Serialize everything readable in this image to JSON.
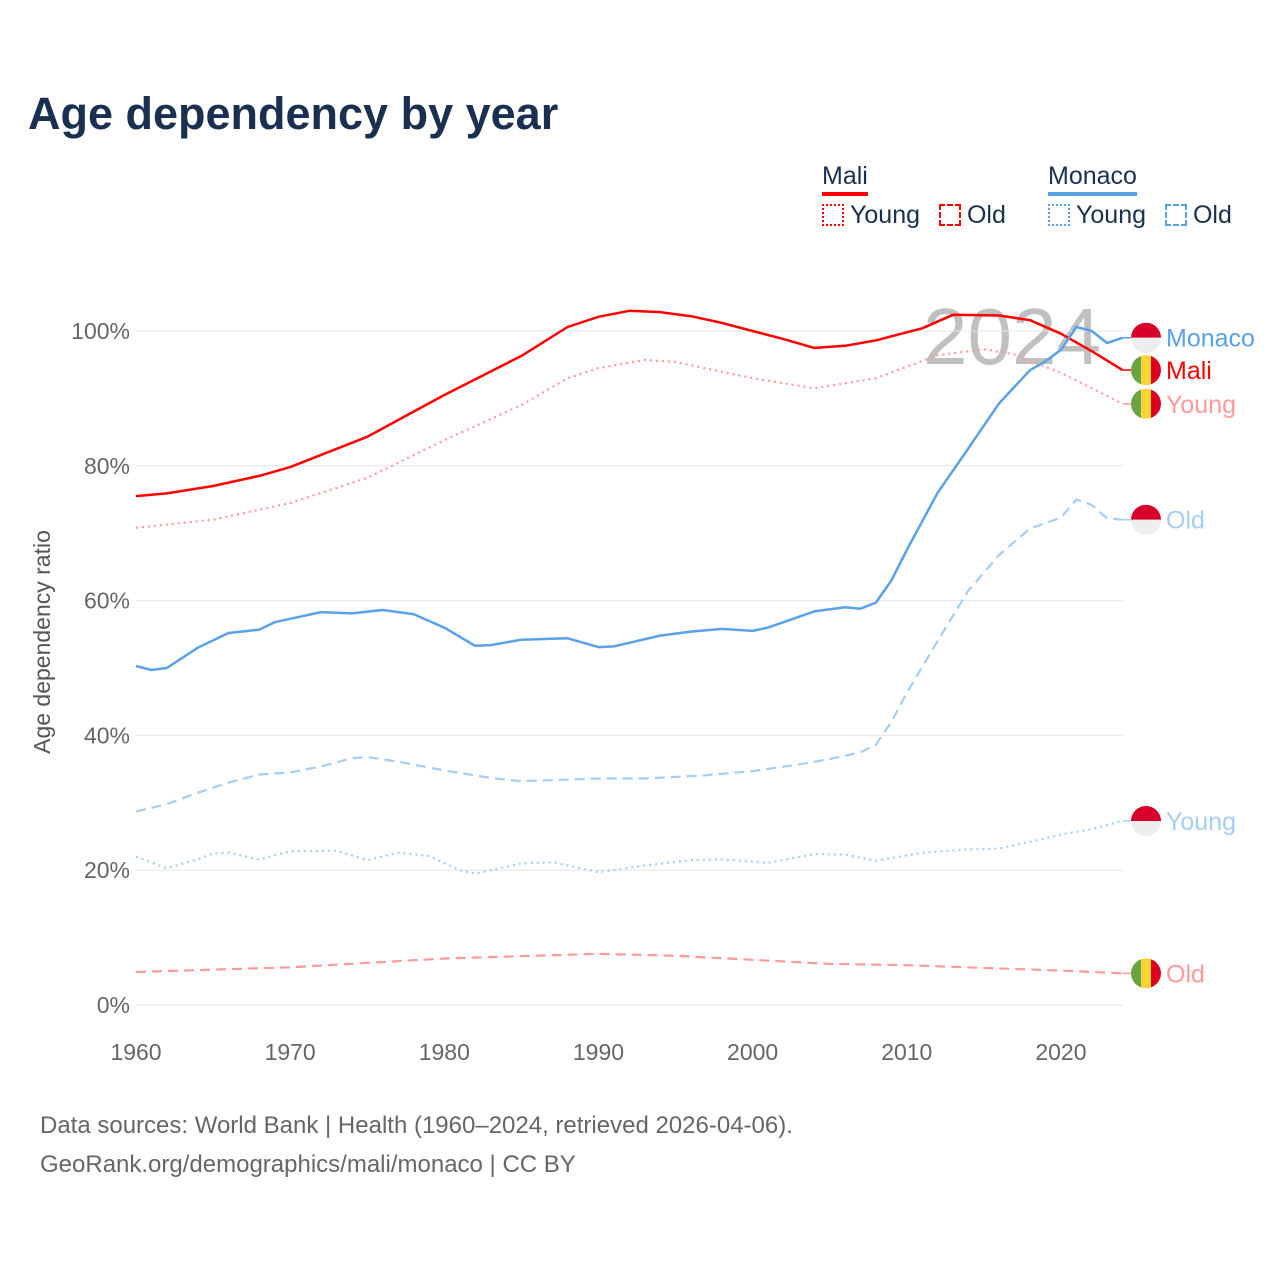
{
  "title": "Age dependency by year",
  "legend": {
    "groups": [
      {
        "name": "Mali",
        "color": "#ff0000",
        "items": [
          "Young",
          "Old"
        ]
      },
      {
        "name": "Monaco",
        "color": "#5aa2e8",
        "items": [
          "Young",
          "Old"
        ]
      }
    ]
  },
  "year_watermark": "2024",
  "footer": {
    "line1": "Data sources: World Bank | Health (1960–2024, retrieved 2026-04-06).",
    "line2": "GeoRank.org/demographics/mali/monaco | CC BY"
  },
  "chart_data": {
    "type": "line",
    "title": "Age dependency by year",
    "xlabel": "",
    "ylabel": "Age dependency ratio",
    "xlim": [
      1960,
      2024
    ],
    "ylim": [
      0,
      100
    ],
    "x_ticks": [
      "1960",
      "1970",
      "1980",
      "1990",
      "2000",
      "2010",
      "2020"
    ],
    "y_ticks": [
      "0%",
      "20%",
      "40%",
      "60%",
      "80%",
      "100%"
    ],
    "grid": true,
    "series": [
      {
        "name": "Mali",
        "country": "Mali",
        "end_label": "Mali",
        "color": "#ff0000",
        "style": "solid",
        "points": [
          [
            1960,
            75.5
          ],
          [
            1962,
            75.9
          ],
          [
            1965,
            77
          ],
          [
            1968,
            78.5
          ],
          [
            1970,
            79.8
          ],
          [
            1975,
            84.3
          ],
          [
            1980,
            90.5
          ],
          [
            1985,
            96.3
          ],
          [
            1988,
            100.6
          ],
          [
            1990,
            102.1
          ],
          [
            1992,
            103
          ],
          [
            1994,
            102.8
          ],
          [
            1996,
            102.2
          ],
          [
            1998,
            101.2
          ],
          [
            2000,
            100
          ],
          [
            2002,
            98.8
          ],
          [
            2004,
            97.5
          ],
          [
            2006,
            97.8
          ],
          [
            2008,
            98.6
          ],
          [
            2011,
            100.4
          ],
          [
            2013,
            102.4
          ],
          [
            2016,
            102.3
          ],
          [
            2018,
            101.6
          ],
          [
            2020,
            99.6
          ],
          [
            2022,
            97
          ],
          [
            2024,
            94.2
          ]
        ]
      },
      {
        "name": "Mali Young",
        "country": "Mali",
        "end_label": "Young",
        "color": "#ff9a9a",
        "style": "dotted",
        "points": [
          [
            1960,
            70.8
          ],
          [
            1965,
            72
          ],
          [
            1970,
            74.5
          ],
          [
            1975,
            78.2
          ],
          [
            1980,
            83.8
          ],
          [
            1985,
            89
          ],
          [
            1988,
            93
          ],
          [
            1990,
            94.5
          ],
          [
            1993,
            95.7
          ],
          [
            1995,
            95.4
          ],
          [
            2000,
            93
          ],
          [
            2004,
            91.5
          ],
          [
            2008,
            93
          ],
          [
            2012,
            96.4
          ],
          [
            2015,
            97.3
          ],
          [
            2017,
            96.5
          ],
          [
            2020,
            93.8
          ],
          [
            2024,
            89.2
          ]
        ]
      },
      {
        "name": "Mali Old",
        "country": "Mali",
        "end_label": "Old",
        "color": "#ff9a9a",
        "style": "dashed",
        "points": [
          [
            1960,
            4.9
          ],
          [
            1970,
            5.6
          ],
          [
            1980,
            6.9
          ],
          [
            1990,
            7.6
          ],
          [
            1995,
            7.3
          ],
          [
            2000,
            6.7
          ],
          [
            2005,
            6.1
          ],
          [
            2010,
            5.9
          ],
          [
            2015,
            5.5
          ],
          [
            2020,
            5.1
          ],
          [
            2024,
            4.7
          ]
        ]
      },
      {
        "name": "Monaco",
        "country": "Monaco",
        "end_label": "Monaco",
        "color": "#5aa2e8",
        "style": "solid",
        "points": [
          [
            1960,
            50.3
          ],
          [
            1961,
            49.7
          ],
          [
            1962,
            50
          ],
          [
            1964,
            53
          ],
          [
            1966,
            55.2
          ],
          [
            1968,
            55.7
          ],
          [
            1969,
            56.8
          ],
          [
            1970,
            57.3
          ],
          [
            1972,
            58.3
          ],
          [
            1974,
            58.1
          ],
          [
            1976,
            58.6
          ],
          [
            1978,
            58
          ],
          [
            1980,
            56
          ],
          [
            1982,
            53.3
          ],
          [
            1983,
            53.4
          ],
          [
            1985,
            54.2
          ],
          [
            1988,
            54.4
          ],
          [
            1990,
            53.1
          ],
          [
            1991,
            53.2
          ],
          [
            1994,
            54.8
          ],
          [
            1996,
            55.4
          ],
          [
            1998,
            55.8
          ],
          [
            2000,
            55.5
          ],
          [
            2001,
            56
          ],
          [
            2004,
            58.4
          ],
          [
            2006,
            59
          ],
          [
            2007,
            58.8
          ],
          [
            2008,
            59.7
          ],
          [
            2009,
            63
          ],
          [
            2010,
            67.5
          ],
          [
            2012,
            76
          ],
          [
            2014,
            82.6
          ],
          [
            2016,
            89.3
          ],
          [
            2018,
            94.2
          ],
          [
            2019,
            95.5
          ],
          [
            2020,
            97.2
          ],
          [
            2021,
            100.6
          ],
          [
            2022,
            100
          ],
          [
            2023,
            98.2
          ],
          [
            2024,
            99
          ]
        ]
      },
      {
        "name": "Monaco Old",
        "country": "Monaco",
        "end_label": "Old",
        "color": "#a7cdf2",
        "style": "dashed",
        "points": [
          [
            1960,
            28.7
          ],
          [
            1962,
            29.8
          ],
          [
            1964,
            31.5
          ],
          [
            1966,
            33
          ],
          [
            1968,
            34.2
          ],
          [
            1970,
            34.5
          ],
          [
            1972,
            35.4
          ],
          [
            1974,
            36.6
          ],
          [
            1975,
            36.8
          ],
          [
            1977,
            36.1
          ],
          [
            1980,
            34.8
          ],
          [
            1983,
            33.7
          ],
          [
            1985,
            33.2
          ],
          [
            1990,
            33.6
          ],
          [
            1993,
            33.6
          ],
          [
            1997,
            34.1
          ],
          [
            2000,
            34.7
          ],
          [
            2003,
            35.7
          ],
          [
            2005,
            36.5
          ],
          [
            2007,
            37.5
          ],
          [
            2008,
            38.6
          ],
          [
            2009,
            42
          ],
          [
            2010,
            46.3
          ],
          [
            2012,
            54
          ],
          [
            2014,
            61.5
          ],
          [
            2016,
            66.8
          ],
          [
            2018,
            70.7
          ],
          [
            2020,
            72.3
          ],
          [
            2021,
            75
          ],
          [
            2022,
            74.2
          ],
          [
            2023,
            72.2
          ],
          [
            2024,
            72
          ]
        ]
      },
      {
        "name": "Monaco Young",
        "country": "Monaco",
        "end_label": "Young",
        "color": "#a7cdf2",
        "style": "dotted",
        "points": [
          [
            1960,
            22
          ],
          [
            1962,
            20.3
          ],
          [
            1964,
            21.6
          ],
          [
            1965,
            22.5
          ],
          [
            1966,
            22.6
          ],
          [
            1968,
            21.6
          ],
          [
            1970,
            22.8
          ],
          [
            1973,
            22.9
          ],
          [
            1975,
            21.5
          ],
          [
            1977,
            22.6
          ],
          [
            1979,
            22.1
          ],
          [
            1981,
            20
          ],
          [
            1982,
            19.5
          ],
          [
            1985,
            21
          ],
          [
            1987,
            21.2
          ],
          [
            1990,
            19.7
          ],
          [
            1993,
            20.7
          ],
          [
            1996,
            21.5
          ],
          [
            1998,
            21.6
          ],
          [
            2001,
            21.1
          ],
          [
            2004,
            22.4
          ],
          [
            2006,
            22.3
          ],
          [
            2008,
            21.4
          ],
          [
            2011,
            22.6
          ],
          [
            2014,
            23.1
          ],
          [
            2016,
            23.2
          ],
          [
            2018,
            24.2
          ],
          [
            2020,
            25.3
          ],
          [
            2022,
            26.1
          ],
          [
            2024,
            27.3
          ]
        ]
      }
    ]
  }
}
